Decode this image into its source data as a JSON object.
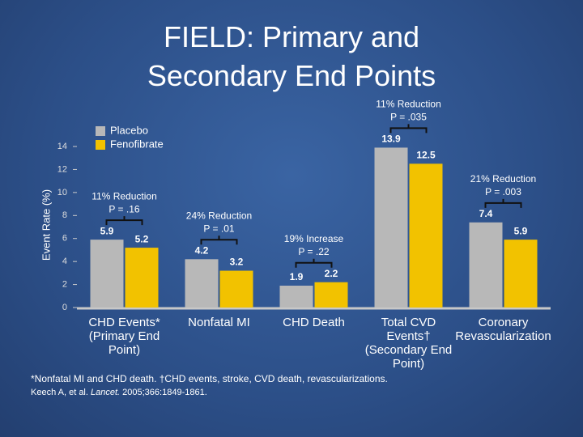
{
  "chart_data": {
    "type": "bar",
    "title": "FIELD: Primary and Secondary End Points",
    "y_label": "Event Rate (%)",
    "categories": [
      "CHD Events* (Primary End Point)",
      "Nonfatal MI",
      "CHD Death",
      "Total CVD Events† (Secondary End Point)",
      "Coronary Revascularization"
    ],
    "series": [
      {
        "name": "Placebo",
        "color": "#b8b8b8",
        "values": [
          5.9,
          4.2,
          1.9,
          13.9,
          7.4
        ]
      },
      {
        "name": "Fenofibrate",
        "color": "#f2c200",
        "values": [
          5.2,
          3.2,
          2.2,
          12.5,
          5.9
        ]
      }
    ],
    "annotations": [
      {
        "text": "11% Reduction",
        "p": "P = .16"
      },
      {
        "text": "24% Reduction",
        "p": "P = .01"
      },
      {
        "text": "19% Increase",
        "p": "P = .22"
      },
      {
        "text": "11% Reduction",
        "p": "P = .035"
      },
      {
        "text": "21% Reduction",
        "p": "P = .003"
      }
    ],
    "ylim": [
      0,
      14
    ],
    "yticks": [
      0,
      2,
      4,
      6,
      8,
      10,
      12,
      14
    ],
    "legend": "upper left",
    "footnote": "*Nonfatal MI and CHD death. †CHD events, stroke, CVD death, revascularizations.",
    "citation": {
      "authors": "Keech A, et al.",
      "journal": "Lancet.",
      "details": "2005;366:1849-1861."
    }
  }
}
